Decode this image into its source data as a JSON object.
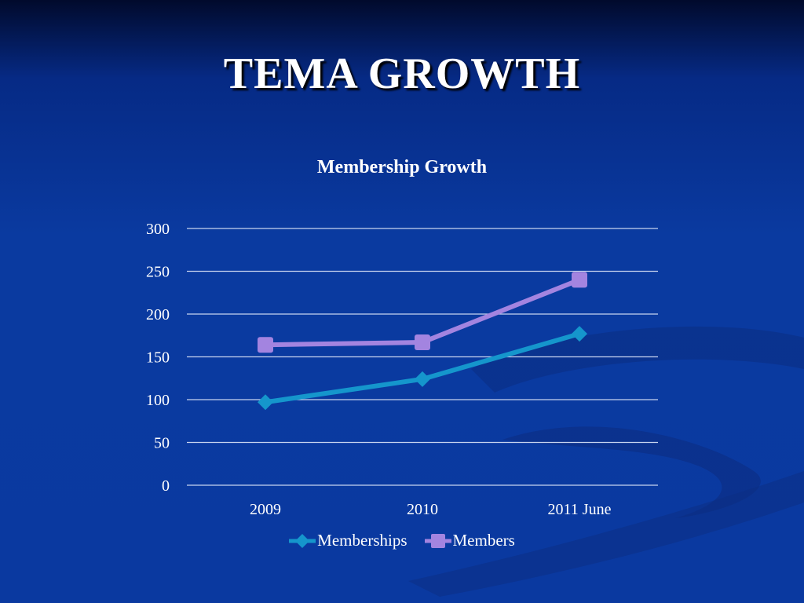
{
  "slide": {
    "title": "TEMA GROWTH"
  },
  "chart_data": {
    "type": "line",
    "title": "Membership Growth",
    "categories": [
      "2009",
      "2010",
      "2011 June"
    ],
    "series": [
      {
        "name": "Memberships",
        "values": [
          97,
          124,
          177
        ],
        "color": "#1596cc",
        "marker": "diamond"
      },
      {
        "name": "Members",
        "values": [
          164,
          167,
          240
        ],
        "color": "#a384e0",
        "marker": "square"
      }
    ],
    "ylim": [
      0,
      300
    ],
    "yticks": [
      0,
      50,
      100,
      150,
      200,
      250,
      300
    ],
    "grid": true,
    "legend": "bottom"
  }
}
